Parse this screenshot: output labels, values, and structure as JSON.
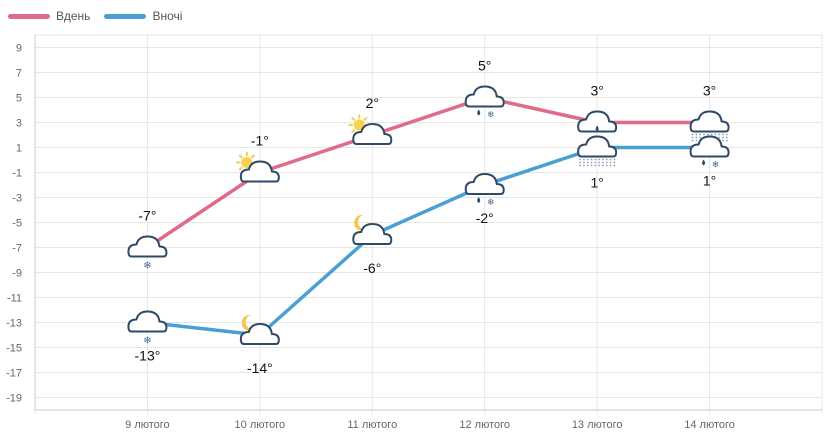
{
  "chart_data": {
    "type": "line",
    "categories": [
      "9 лютого",
      "10 лютого",
      "11 лютого",
      "12 лютого",
      "13 лютого",
      "14 лютого"
    ],
    "ylim": [
      -20,
      10
    ],
    "yticks": [
      9,
      7,
      5,
      3,
      1,
      -1,
      -3,
      -5,
      -7,
      -9,
      -11,
      -13,
      -15,
      -17,
      -19
    ],
    "grid": true,
    "legend_position": "top-left",
    "series": [
      {
        "name": "Вдень",
        "color": "#e06a87",
        "values": [
          -7,
          -1,
          2,
          5,
          3,
          3
        ],
        "labels": [
          "-7°",
          "-1°",
          "2°",
          "5°",
          "3°",
          "3°"
        ],
        "label_position": "above",
        "icons": [
          "cloud-snow",
          "sun-cloud",
          "sun-cloud",
          "cloud-rain-snow",
          "cloud-rain",
          "cloud-fog"
        ]
      },
      {
        "name": "Вночі",
        "color": "#4a9fd4",
        "values": [
          -13,
          -14,
          -6,
          -2,
          1,
          1
        ],
        "labels": [
          "-13°",
          "-14°",
          "-6°",
          "-2°",
          "1°",
          "1°"
        ],
        "label_position": "below",
        "icons": [
          "cloud-snow",
          "moon-cloud",
          "moon-cloud",
          "cloud-rain-snow",
          "cloud-fog",
          "cloud-rain-snow"
        ]
      }
    ]
  }
}
